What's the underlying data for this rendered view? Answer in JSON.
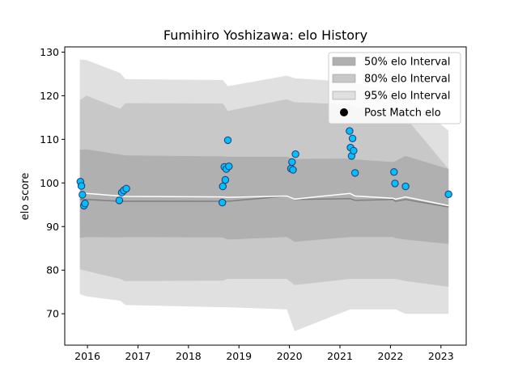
{
  "chart_data": {
    "type": "scatter",
    "title": "Fumihiro Yoshizawa: elo History",
    "xlabel": "",
    "ylabel": "elo score",
    "xlim": [
      2015.55,
      2023.5
    ],
    "ylim": [
      62.8,
      131.2
    ],
    "xticks": [
      2016,
      2017,
      2018,
      2019,
      2020,
      2021,
      2022,
      2023
    ],
    "yticks": [
      70,
      80,
      90,
      100,
      110,
      120,
      130
    ],
    "legend": {
      "placement": "top-right",
      "entries": [
        {
          "label": "50% elo Interval",
          "color": "#b0b0b0",
          "kind": "patch"
        },
        {
          "label": "80% elo Interval",
          "color": "#c8c8c8",
          "kind": "patch"
        },
        {
          "label": "95% elo Interval",
          "color": "#e0e0e0",
          "kind": "patch"
        },
        {
          "label": "Post Match elo",
          "color": "#000000",
          "kind": "marker"
        }
      ]
    },
    "bands": {
      "x": [
        2015.85,
        2015.98,
        2016.65,
        2016.75,
        2018.68,
        2018.78,
        2019.95,
        2020.1,
        2021.2,
        2021.3,
        2022.05,
        2022.1,
        2022.3,
        2023.15
      ],
      "p95_hi": [
        128.3,
        128.2,
        125.2,
        123.8,
        123.6,
        122.2,
        124.6,
        124.0,
        123.2,
        122.8,
        121.0,
        120.8,
        120.0,
        112.0
      ],
      "p80_hi": [
        119.0,
        120.0,
        117.0,
        118.3,
        118.2,
        116.5,
        119.2,
        118.5,
        118.0,
        117.5,
        115.8,
        115.5,
        115.0,
        103.2
      ],
      "p50_hi": [
        107.6,
        107.7,
        106.5,
        106.3,
        106.1,
        106.0,
        106.0,
        105.5,
        105.6,
        105.4,
        104.8,
        105.0,
        106.2,
        103.2
      ],
      "p50_lo": [
        87.4,
        87.6,
        87.5,
        87.6,
        87.5,
        87.0,
        87.6,
        86.5,
        87.6,
        87.6,
        87.6,
        87.3,
        87.0,
        86.0
      ],
      "p80_lo": [
        80.2,
        79.8,
        78.0,
        77.5,
        77.6,
        78.0,
        78.0,
        76.6,
        78.0,
        78.0,
        78.0,
        78.0,
        77.5,
        76.2
      ],
      "p95_lo": [
        74.5,
        74.0,
        73.0,
        72.0,
        71.5,
        71.5,
        71.0,
        66.0,
        71.0,
        71.0,
        71.0,
        71.0,
        70.0,
        70.0
      ],
      "median": [
        96.2,
        96.2,
        95.8,
        95.8,
        95.8,
        95.8,
        97.0,
        96.2,
        96.4,
        96.0,
        96.2,
        95.8,
        96.2,
        94.5
      ],
      "mean": [
        97.8,
        97.6,
        97.0,
        96.9,
        96.8,
        96.7,
        97.0,
        96.3,
        97.6,
        97.0,
        96.5,
        96.3,
        96.8,
        94.8
      ]
    },
    "points": {
      "x": [
        2015.86,
        2015.88,
        2015.9,
        2015.93,
        2015.95,
        2016.63,
        2016.68,
        2016.72,
        2016.77,
        2018.67,
        2018.68,
        2018.71,
        2018.73,
        2018.75,
        2018.78,
        2018.8,
        2020.03,
        2020.05,
        2020.07,
        2020.12,
        2021.19,
        2021.21,
        2021.23,
        2021.25,
        2021.27,
        2021.3,
        2022.07,
        2022.09,
        2022.3,
        2023.15
      ],
      "y": [
        100.3,
        99.3,
        97.3,
        94.8,
        95.3,
        96.0,
        97.8,
        98.3,
        98.7,
        95.5,
        99.2,
        103.7,
        100.7,
        103.2,
        109.8,
        103.8,
        103.3,
        104.8,
        103.0,
        106.6,
        111.9,
        108.1,
        106.2,
        110.2,
        107.4,
        102.3,
        102.5,
        99.9,
        99.2,
        97.4
      ]
    },
    "series_colors": {
      "p95": "#e0e0e0",
      "p80": "#c8c8c8",
      "p50": "#b0b0b0",
      "median": "#7f7f7f",
      "mean": "#ffffff",
      "point_fill": "#00bfff",
      "point_edge": "#1f3a73"
    }
  }
}
